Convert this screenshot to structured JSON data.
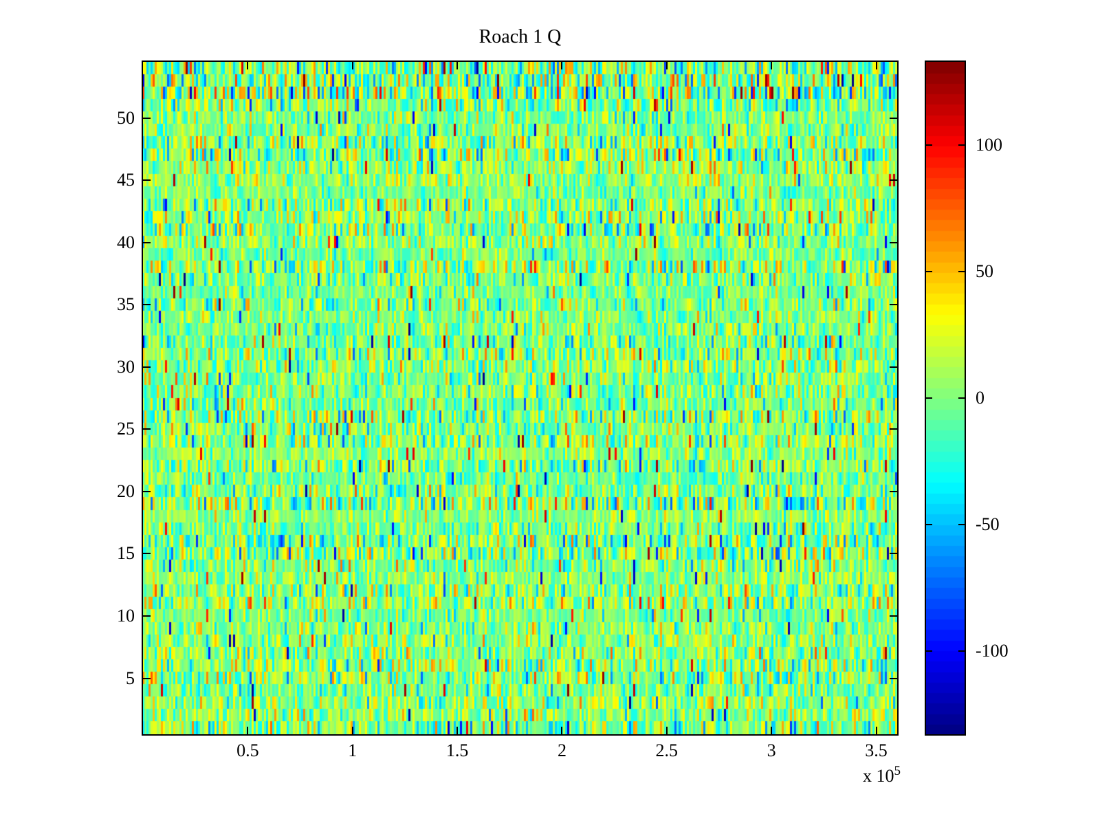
{
  "figure": {
    "background": "#ffffff"
  },
  "chart_data": {
    "type": "heatmap",
    "title": "Roach 1 Q",
    "x_axis": {
      "min": 0,
      "max": 360000,
      "tick_values": [
        50000,
        100000,
        150000,
        200000,
        250000,
        300000,
        350000
      ],
      "tick_labels": [
        "0.5",
        "1",
        "1.5",
        "2",
        "2.5",
        "3",
        "3.5"
      ],
      "multiplier_base": "x 10",
      "multiplier_exponent": "5"
    },
    "y_axis": {
      "min": 0.5,
      "max": 54.5,
      "tick_values": [
        5,
        10,
        15,
        20,
        25,
        30,
        35,
        40,
        45,
        50
      ],
      "tick_labels": [
        "5",
        "10",
        "15",
        "20",
        "25",
        "30",
        "35",
        "40",
        "45",
        "50"
      ]
    },
    "colorbar": {
      "min": -133,
      "max": 133,
      "tick_values": [
        -100,
        -50,
        0,
        50,
        100
      ],
      "tick_labels": [
        "-100",
        "-50",
        "0",
        "50",
        "100"
      ],
      "colormap": "jet",
      "levels": 64
    },
    "heatmap": {
      "rows": 54,
      "cols": 366,
      "description": "dense pseudo-random noise centered near 0 (green/yellow-green), frequent cyan streaks, sparse orange/red and blue outliers reaching about +/-130",
      "noise_std": 22,
      "outlier_fraction": 0.02,
      "seed": 1234567
    },
    "grid": false,
    "legend": false
  },
  "colors": {
    "axis": "#000000",
    "text": "#000000",
    "plot_border": "#000000"
  }
}
